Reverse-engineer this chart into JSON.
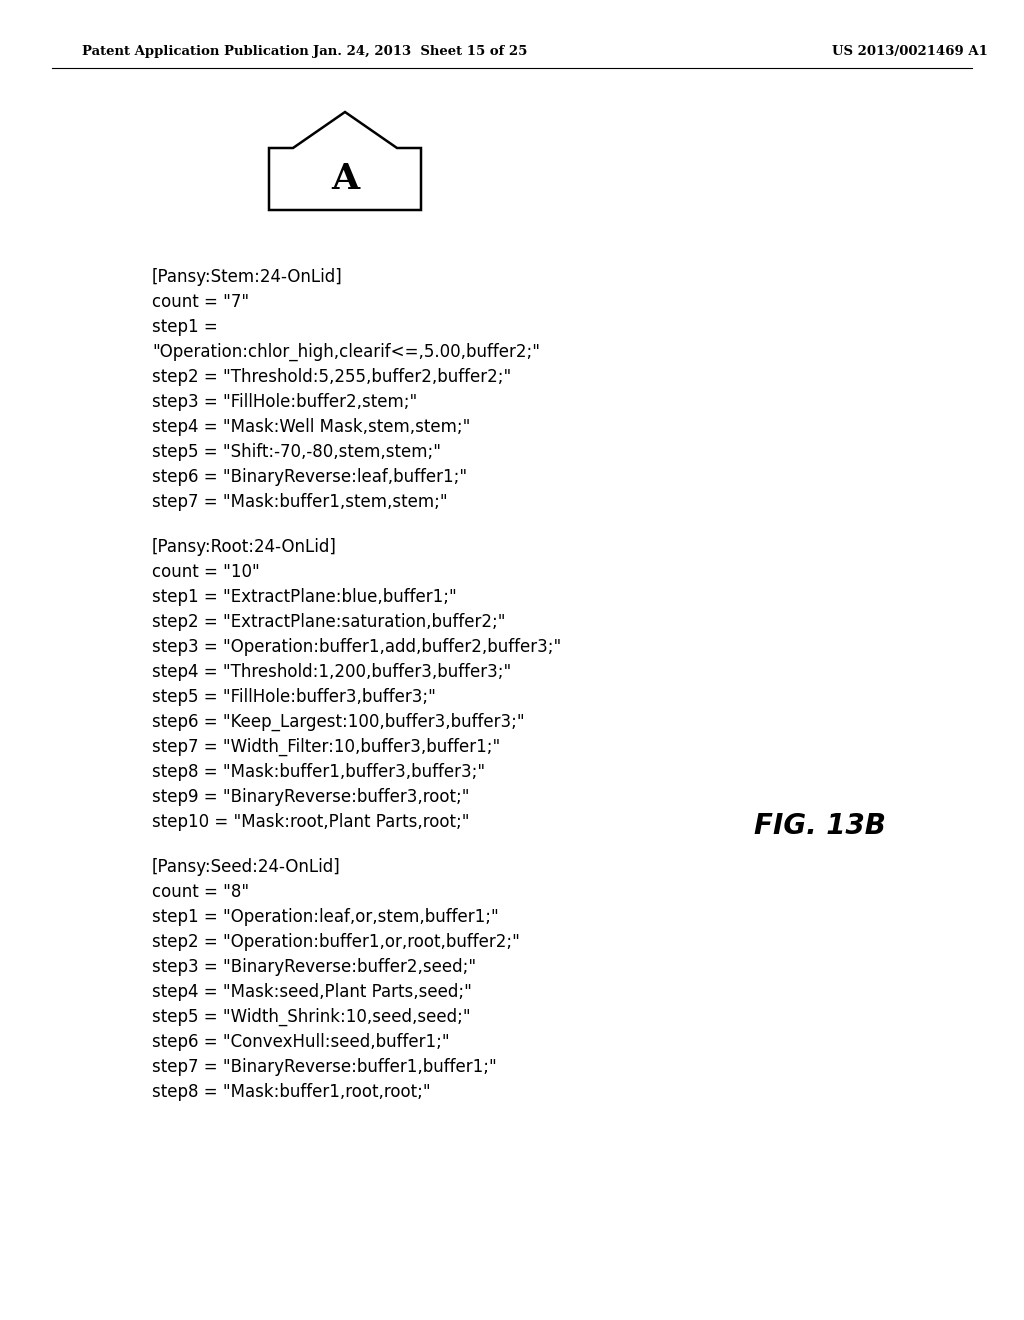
{
  "header_left": "Patent Application Publication",
  "header_mid": "Jan. 24, 2013  Sheet 15 of 25",
  "header_right": "US 2013/0021469 A1",
  "figure_label": "FIG. 13B",
  "label_A": "A",
  "section1_header": "[Pansy:Stem:24-OnLid]",
  "section1_count": "count = \"7\"",
  "section1_lines": [
    "step1 =",
    "\"Operation:chlor_high,clearif<=,5.00,buffer2;\"",
    "step2 = \"Threshold:5,255,buffer2,buffer2;\"",
    "step3 = \"FillHole:buffer2,stem;\"",
    "step4 = \"Mask:Well Mask,stem,stem;\"",
    "step5 = \"Shift:-70,-80,stem,stem;\"",
    "step6 = \"BinaryReverse:leaf,buffer1;\"",
    "step7 = \"Mask:buffer1,stem,stem;\""
  ],
  "section2_header": "[Pansy:Root:24-OnLid]",
  "section2_count": "count = \"10\"",
  "section2_lines": [
    "step1 = \"ExtractPlane:blue,buffer1;\"",
    "step2 = \"ExtractPlane:saturation,buffer2;\"",
    "step3 = \"Operation:buffer1,add,buffer2,buffer3;\"",
    "step4 = \"Threshold:1,200,buffer3,buffer3;\"",
    "step5 = \"FillHole:buffer3,buffer3;\"",
    "step6 = \"Keep_Largest:100,buffer3,buffer3;\"",
    "step7 = \"Width_Filter:10,buffer3,buffer1;\"",
    "step8 = \"Mask:buffer1,buffer3,buffer3;\"",
    "step9 = \"BinaryReverse:buffer3,root;\"",
    "step10 = \"Mask:root,Plant Parts,root;\""
  ],
  "section3_header": "[Pansy:Seed:24-OnLid]",
  "section3_count": "count = \"8\"",
  "section3_lines": [
    "step1 = \"Operation:leaf,or,stem,buffer1;\"",
    "step2 = \"Operation:buffer1,or,root,buffer2;\"",
    "step3 = \"BinaryReverse:buffer2,seed;\"",
    "step4 = \"Mask:seed,Plant Parts,seed;\"",
    "step5 = \"Width_Shrink:10,seed,seed;\"",
    "step6 = \"ConvexHull:seed,buffer1;\"",
    "step7 = \"BinaryReverse:buffer1,buffer1;\"",
    "step8 = \"Mask:buffer1,root,root;\""
  ],
  "bg_color": "#ffffff",
  "text_color": "#000000",
  "header_fontsize": 9.5,
  "body_fontsize": 12,
  "fig_label_fontsize": 20
}
